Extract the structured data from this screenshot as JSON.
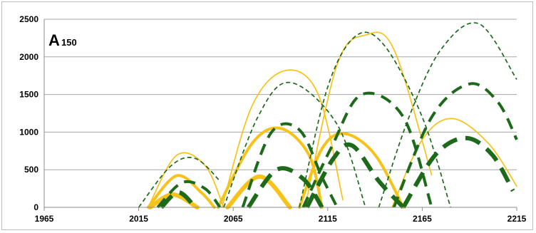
{
  "chart_data": {
    "type": "line",
    "title": "",
    "panel_label": "A",
    "panel_label_sub": "150",
    "xlabel": "",
    "ylabel": "",
    "xlim": [
      1965,
      2215
    ],
    "ylim": [
      0,
      2500
    ],
    "x_ticks": [
      1965,
      2015,
      2065,
      2115,
      2165,
      2215
    ],
    "y_ticks": [
      0,
      500,
      1000,
      1500,
      2000,
      2500
    ],
    "grid": "horizontal",
    "legend": "none",
    "colors": {
      "gold": "#f7c21a",
      "green": "#1d6b1a",
      "grid": "#a6a6a6",
      "axis": "#8c8c8c"
    },
    "series": [
      {
        "color": "gold",
        "style": "solid",
        "weight": "thin",
        "x": [
          2020,
          2035,
          2050,
          2060
        ],
        "y": [
          0,
          690,
          560,
          0
        ]
      },
      {
        "color": "gold",
        "style": "solid",
        "weight": "medium",
        "x": [
          2020,
          2035,
          2048,
          2055
        ],
        "y": [
          0,
          420,
          200,
          0
        ]
      },
      {
        "color": "gold",
        "style": "solid",
        "weight": "thick",
        "x": [
          2021,
          2033,
          2046
        ],
        "y": [
          0,
          170,
          0
        ]
      },
      {
        "color": "gold",
        "style": "solid",
        "weight": "thin",
        "x": [
          2059,
          2075,
          2093,
          2110,
          2123
        ],
        "y": [
          0,
          1350,
          1820,
          1500,
          100
        ]
      },
      {
        "color": "gold",
        "style": "solid",
        "weight": "medium",
        "x": [
          2057,
          2075,
          2090,
          2105,
          2112
        ],
        "y": [
          0,
          850,
          1050,
          700,
          0
        ]
      },
      {
        "color": "gold",
        "style": "solid",
        "weight": "thick",
        "x": [
          2062,
          2079,
          2095
        ],
        "y": [
          0,
          410,
          0
        ]
      },
      {
        "color": "gold",
        "style": "solid",
        "weight": "thin",
        "x": [
          2103,
          2120,
          2135,
          2150,
          2170
        ],
        "y": [
          0,
          1900,
          2290,
          2100,
          430
        ]
      },
      {
        "color": "gold",
        "style": "solid",
        "weight": "medium",
        "x": [
          2100,
          2112,
          2124,
          2140,
          2155
        ],
        "y": [
          0,
          780,
          980,
          700,
          0
        ]
      },
      {
        "color": "gold",
        "style": "solid",
        "weight": "thin",
        "x": [
          2149,
          2165,
          2181,
          2200,
          2215
        ],
        "y": [
          0,
          900,
          1180,
          850,
          280
        ]
      },
      {
        "color": "green",
        "style": "dashed",
        "weight": "thin",
        "x": [
          2015,
          2032,
          2045,
          2058
        ],
        "y": [
          0,
          550,
          650,
          350
        ]
      },
      {
        "color": "green",
        "style": "dashed",
        "weight": "medium",
        "x": [
          2025,
          2038,
          2050,
          2058
        ],
        "y": [
          0,
          330,
          250,
          0
        ]
      },
      {
        "color": "green",
        "style": "dashed",
        "weight": "thick",
        "x": [
          2027,
          2036,
          2045
        ],
        "y": [
          0,
          200,
          0
        ]
      },
      {
        "color": "green",
        "style": "dashed",
        "weight": "thin",
        "x": [
          2060,
          2078,
          2095,
          2120,
          2135
        ],
        "y": [
          0,
          1200,
          1660,
          1100,
          0
        ]
      },
      {
        "color": "green",
        "style": "dashed",
        "weight": "medium",
        "x": [
          2070,
          2085,
          2100,
          2112,
          2120
        ],
        "y": [
          0,
          990,
          1030,
          400,
          0
        ]
      },
      {
        "color": "green",
        "style": "dashed",
        "weight": "thick",
        "x": [
          2073,
          2088,
          2102,
          2112
        ],
        "y": [
          0,
          500,
          380,
          0
        ]
      },
      {
        "color": "green",
        "style": "dashed",
        "weight": "thin",
        "x": [
          2100,
          2115,
          2130,
          2145,
          2165,
          2180
        ],
        "y": [
          0,
          1600,
          2280,
          2150,
          1200,
          0
        ]
      },
      {
        "color": "green",
        "style": "dashed",
        "weight": "medium",
        "x": [
          2102,
          2117,
          2133,
          2155,
          2170
        ],
        "y": [
          0,
          800,
          1500,
          1200,
          0
        ]
      },
      {
        "color": "green",
        "style": "dashed",
        "weight": "thick",
        "x": [
          2104,
          2118,
          2128,
          2142,
          2155
        ],
        "y": [
          0,
          650,
          820,
          350,
          0
        ]
      },
      {
        "color": "green",
        "style": "dashed",
        "weight": "thin",
        "x": [
          2142,
          2158,
          2175,
          2195,
          2215
        ],
        "y": [
          0,
          1200,
          2100,
          2440,
          1700
        ]
      },
      {
        "color": "green",
        "style": "dashed",
        "weight": "medium",
        "x": [
          2150,
          2170,
          2190,
          2205,
          2215
        ],
        "y": [
          0,
          1200,
          1640,
          1400,
          900
        ]
      },
      {
        "color": "green",
        "style": "dashed",
        "weight": "thick",
        "x": [
          2155,
          2172,
          2188,
          2202,
          2213
        ],
        "y": [
          0,
          700,
          920,
          700,
          220
        ]
      }
    ]
  }
}
